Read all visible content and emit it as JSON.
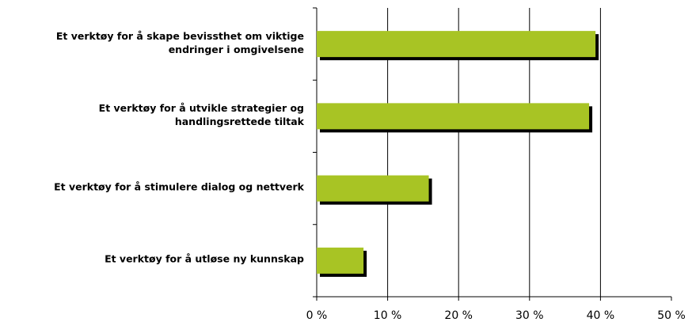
{
  "chart_data": {
    "type": "barh",
    "categories": [
      "Et verktøy for å skape bevissthet om viktige endringer i omgivelsene",
      "Et verktøy for å utvikle strategier og handlingsrettede tiltak",
      "Et verktøy for å stimulere dialog og nettverk",
      "Et verktøy for å utløse ny kunnskap"
    ],
    "values": [
      39.3,
      38.4,
      15.8,
      6.6
    ],
    "color": "#a8c424",
    "xlim": [
      0,
      50
    ],
    "xticks": [
      {
        "value": 0,
        "label": "0 %"
      },
      {
        "value": 10,
        "label": "10 %"
      },
      {
        "value": 20,
        "label": "20 %"
      },
      {
        "value": 30,
        "label": "30 %"
      },
      {
        "value": 40,
        "label": "40 %"
      },
      {
        "value": 50,
        "label": "50 %"
      }
    ],
    "grid": true
  }
}
